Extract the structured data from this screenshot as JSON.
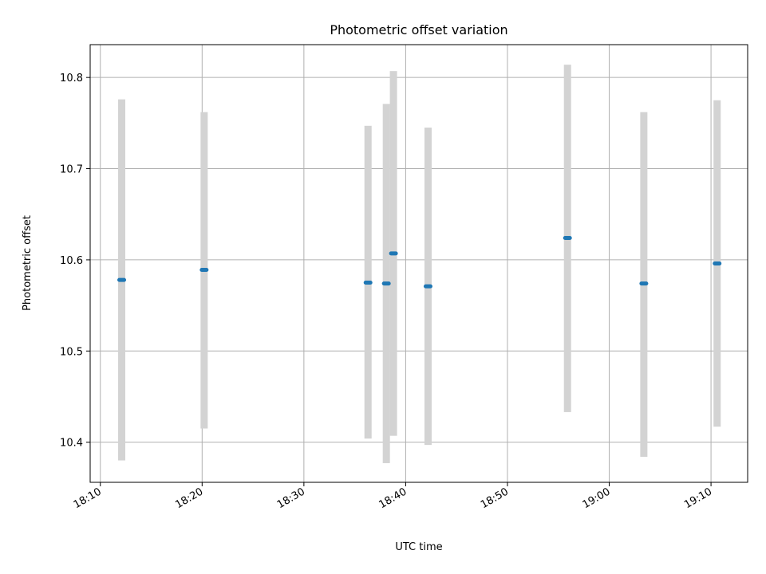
{
  "chart_data": {
    "type": "scatter",
    "title": "Photometric offset variation",
    "xlabel": "UTC time",
    "ylabel": "Photometric offset",
    "x_ticks": [
      "18:10",
      "18:20",
      "18:30",
      "18:40",
      "18:50",
      "19:00",
      "19:10"
    ],
    "y_ticks": [
      "10.4",
      "10.5",
      "10.6",
      "10.7",
      "10.8"
    ],
    "xlim": [
      "18:09",
      "19:13.6"
    ],
    "ylim": [
      10.356,
      10.836
    ],
    "grid": true,
    "legend": "none",
    "point_color": "#1f77b4",
    "errorbar_color": "#d3d3d3",
    "points": [
      {
        "x": "18:12.1",
        "y": 10.578,
        "ymin": 10.38,
        "ymax": 10.776
      },
      {
        "x": "18:20.2",
        "y": 10.589,
        "ymin": 10.415,
        "ymax": 10.762
      },
      {
        "x": "18:36.3",
        "y": 10.575,
        "ymin": 10.404,
        "ymax": 10.747
      },
      {
        "x": "18:38.1",
        "y": 10.574,
        "ymin": 10.377,
        "ymax": 10.771
      },
      {
        "x": "18:38.8",
        "y": 10.607,
        "ymin": 10.407,
        "ymax": 10.807
      },
      {
        "x": "18:42.2",
        "y": 10.571,
        "ymin": 10.397,
        "ymax": 10.745
      },
      {
        "x": "18:55.9",
        "y": 10.624,
        "ymin": 10.433,
        "ymax": 10.814
      },
      {
        "x": "19:03.4",
        "y": 10.574,
        "ymin": 10.384,
        "ymax": 10.762
      },
      {
        "x": "19:10.6",
        "y": 10.596,
        "ymin": 10.417,
        "ymax": 10.775
      }
    ]
  }
}
